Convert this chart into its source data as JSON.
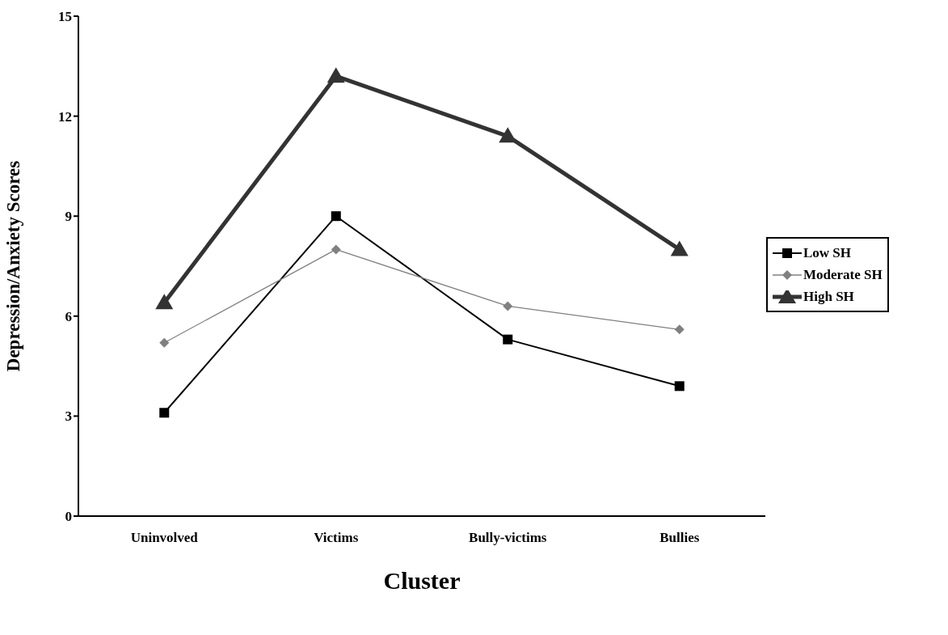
{
  "chart_data": {
    "type": "line",
    "xlabel": "Cluster",
    "ylabel": "Depression/Anxiety Scores",
    "categories": [
      "Uninvolved",
      "Victims",
      "Bully-victims",
      "Bullies"
    ],
    "series": [
      {
        "name": "Low SH",
        "color": "#000000",
        "marker": "square",
        "values": [
          3.1,
          9.0,
          5.3,
          3.9
        ]
      },
      {
        "name": "Moderate SH",
        "color": "#808080",
        "marker": "diamond",
        "values": [
          5.2,
          8.0,
          6.3,
          5.6
        ]
      },
      {
        "name": "High SH",
        "color": "#333333",
        "marker": "triangle",
        "values": [
          6.4,
          13.2,
          11.4,
          8.0
        ]
      }
    ],
    "ylim": [
      0,
      15
    ],
    "yticks": [
      0,
      3,
      6,
      9,
      12,
      15
    ],
    "grid": false,
    "legend": "right",
    "line_style": "solid"
  }
}
